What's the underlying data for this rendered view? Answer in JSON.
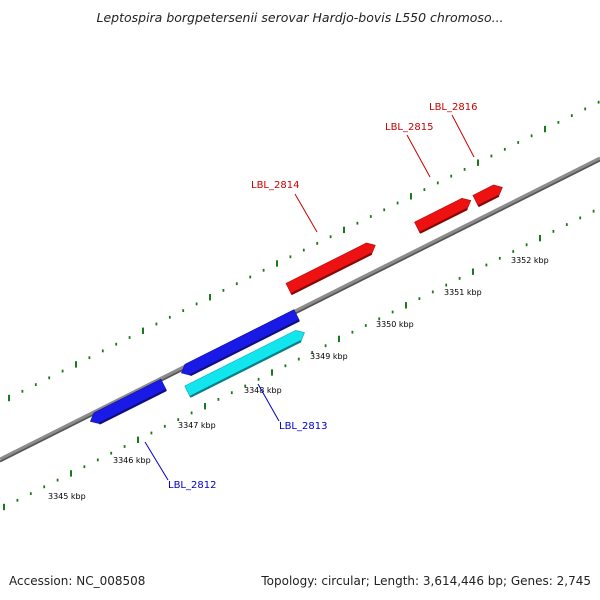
{
  "title": "Leptospira borgpetersenii serovar Hardjo-bovis L550 chromoso...",
  "footer": {
    "accession": "Accession: NC_008508",
    "summary": "Topology: circular; Length: 3,614,446 bp; Genes: 2,745"
  },
  "colors": {
    "backbone": "#8c8c8c",
    "tick": "#1a7a1a",
    "forward_gene": "#ee1111",
    "reverse_gene": "#1a1ae6",
    "reverse_gene_alt": "#11e6ee",
    "forward_label": "#cc0000",
    "reverse_label": "#0000cc"
  },
  "ticks": [
    {
      "label": "3345 kbp"
    },
    {
      "label": "3346 kbp"
    },
    {
      "label": "3347 kbp"
    },
    {
      "label": "3348 kbp"
    },
    {
      "label": "3349 kbp"
    },
    {
      "label": "3350 kbp"
    },
    {
      "label": "3351 kbp"
    },
    {
      "label": "3352 kbp"
    }
  ],
  "genes": [
    {
      "name": "LBL_2812",
      "strand": "reverse",
      "color": "#1a1ae6"
    },
    {
      "name": "LBL_2813",
      "strand": "reverse",
      "color": "#11e6ee"
    },
    {
      "name": "LBL_2814",
      "strand": "forward",
      "color": "#ee1111"
    },
    {
      "name": "LBL_2815",
      "strand": "forward",
      "color": "#ee1111"
    },
    {
      "name": "LBL_2816",
      "strand": "forward",
      "color": "#ee1111"
    }
  ]
}
